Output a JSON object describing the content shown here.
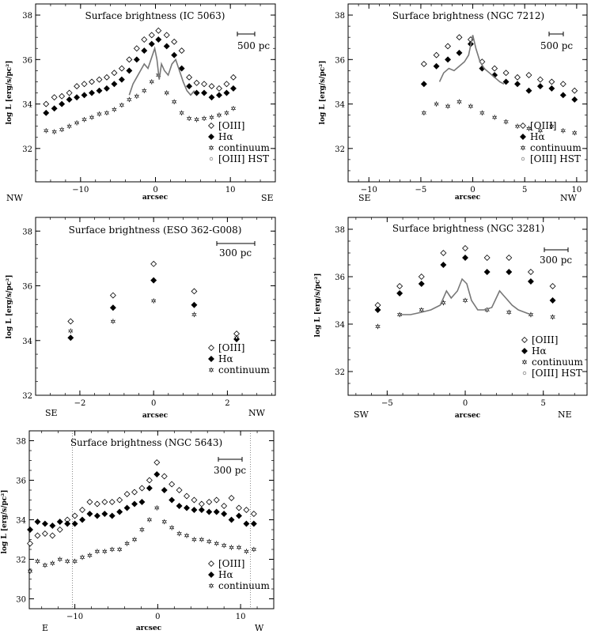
{
  "chart_data": [
    {
      "type": "scatter",
      "title": "Surface brightness (IC 5063)",
      "xlabel": "arcsec",
      "ylabel": "log L [erg/s/pc²]",
      "xlim": [
        -16,
        16
      ],
      "ylim": [
        30.5,
        38.5
      ],
      "xticks": [
        -10,
        0,
        10
      ],
      "yticks": [
        32,
        34,
        36,
        38
      ],
      "left_label": "NW",
      "right_label": "SE",
      "scale_bar": "500 pc",
      "legend": [
        "[OIII]",
        "Hα",
        "continuum",
        "[OIII]  HST"
      ],
      "series": [
        {
          "name": "[OIII]",
          "marker": "diamond-open",
          "x": [
            -14.6,
            -13.5,
            -12.5,
            -11.5,
            -10.5,
            -9.5,
            -8.5,
            -7.5,
            -6.5,
            -5.5,
            -4.5,
            -3.5,
            -2.5,
            -1.5,
            -0.5,
            0.4,
            1.5,
            2.5,
            3.5,
            4.5,
            5.5,
            6.5,
            7.5,
            8.5,
            9.5,
            10.4
          ],
          "y": [
            34.0,
            34.3,
            34.35,
            34.5,
            34.8,
            34.9,
            35.0,
            35.1,
            35.2,
            35.4,
            35.6,
            36.0,
            36.5,
            36.9,
            37.1,
            37.3,
            37.1,
            36.8,
            36.4,
            35.2,
            34.95,
            34.9,
            34.8,
            34.7,
            34.9,
            35.2
          ]
        },
        {
          "name": "Hα",
          "marker": "diamond-filled",
          "x": [
            -14.6,
            -13.5,
            -12.5,
            -11.5,
            -10.5,
            -9.5,
            -8.5,
            -7.5,
            -6.5,
            -5.5,
            -4.5,
            -3.5,
            -2.5,
            -1.5,
            -0.5,
            0.4,
            1.5,
            2.5,
            3.5,
            4.5,
            5.5,
            6.5,
            7.5,
            8.5,
            9.5,
            10.4
          ],
          "y": [
            33.6,
            33.8,
            34.0,
            34.2,
            34.3,
            34.4,
            34.5,
            34.6,
            34.7,
            34.9,
            35.1,
            35.5,
            36.0,
            36.4,
            36.7,
            36.9,
            36.6,
            36.2,
            35.6,
            34.8,
            34.5,
            34.5,
            34.3,
            34.4,
            34.5,
            34.7
          ]
        },
        {
          "name": "continuum",
          "marker": "star",
          "x": [
            -14.6,
            -13.5,
            -12.5,
            -11.5,
            -10.5,
            -9.5,
            -8.5,
            -7.5,
            -6.5,
            -5.5,
            -4.5,
            -3.5,
            -2.5,
            -1.5,
            -0.5,
            0.4,
            1.5,
            2.5,
            3.5,
            4.5,
            5.5,
            6.5,
            7.5,
            8.5,
            9.5,
            10.4
          ],
          "y": [
            32.8,
            32.75,
            32.85,
            33.0,
            33.15,
            33.3,
            33.4,
            33.55,
            33.6,
            33.75,
            33.95,
            34.2,
            34.35,
            34.6,
            35.0,
            35.3,
            34.5,
            34.1,
            33.6,
            33.35,
            33.3,
            33.35,
            33.4,
            33.5,
            33.6,
            33.8
          ]
        },
        {
          "name": "[OIII]  HST",
          "marker": "curve",
          "x": [
            -3.5,
            -3.0,
            -2.5,
            -2.0,
            -1.5,
            -1.0,
            -0.5,
            -0.1,
            0.2,
            0.5,
            0.8,
            1.2,
            1.7,
            2.2,
            2.7,
            3.2,
            3.7,
            4.2,
            4.7,
            5.2
          ],
          "y": [
            34.4,
            34.9,
            35.2,
            35.5,
            35.8,
            35.6,
            36.1,
            36.5,
            36.0,
            35.1,
            35.8,
            35.5,
            35.3,
            35.8,
            36.0,
            35.5,
            35.0,
            34.6,
            34.4,
            34.6
          ]
        }
      ]
    },
    {
      "type": "scatter",
      "title": "Surface brightness (NGC 7212)",
      "xlabel": "arcsec",
      "ylabel": "log L [erg/s/pc²]",
      "xlim": [
        -12,
        11
      ],
      "ylim": [
        30.5,
        38.5
      ],
      "xticks": [
        -10,
        -5,
        0,
        5,
        10
      ],
      "yticks": [
        32,
        34,
        36,
        38
      ],
      "left_label": "SE",
      "right_label": "NW",
      "scale_bar": "500 pc",
      "legend": [
        "[OIII]",
        "Hα",
        "continuum",
        "[OIII]  HST"
      ],
      "series": [
        {
          "name": "[OIII]",
          "marker": "diamond-open",
          "x": [
            -4.7,
            -3.5,
            -2.4,
            -1.3,
            -0.2,
            0.9,
            2.1,
            3.2,
            4.3,
            5.4,
            6.5,
            7.6,
            8.7,
            9.8
          ],
          "y": [
            35.8,
            36.2,
            36.6,
            37.0,
            36.9,
            35.9,
            35.6,
            35.4,
            35.2,
            35.3,
            35.1,
            35.0,
            34.9,
            34.6
          ]
        },
        {
          "name": "Hα",
          "marker": "diamond-filled",
          "x": [
            -4.7,
            -3.5,
            -2.4,
            -1.3,
            -0.2,
            0.9,
            2.1,
            3.2,
            4.3,
            5.4,
            6.5,
            7.6,
            8.7,
            9.8
          ],
          "y": [
            34.9,
            35.7,
            36.0,
            36.3,
            36.7,
            35.6,
            35.3,
            35.0,
            34.9,
            34.6,
            34.8,
            34.7,
            34.4,
            34.2
          ]
        },
        {
          "name": "continuum",
          "marker": "star",
          "x": [
            -4.7,
            -3.5,
            -2.4,
            -1.3,
            -0.2,
            0.9,
            2.1,
            3.2,
            4.3,
            5.4,
            6.5,
            7.6,
            8.7,
            9.8
          ],
          "y": [
            33.6,
            34.0,
            33.9,
            34.1,
            33.9,
            33.6,
            33.4,
            33.2,
            33.0,
            32.9,
            32.8,
            33.0,
            32.8,
            32.7
          ]
        },
        {
          "name": "[OIII]  HST",
          "marker": "curve",
          "x": [
            -3.2,
            -2.8,
            -2.3,
            -1.8,
            -1.3,
            -0.8,
            -0.4,
            0.0,
            0.3,
            0.7,
            1.1,
            1.6,
            2.1,
            2.6,
            3.0
          ],
          "y": [
            35.0,
            35.4,
            35.6,
            35.5,
            35.7,
            35.9,
            36.2,
            37.1,
            36.5,
            35.9,
            35.6,
            35.4,
            35.2,
            35.0,
            34.9
          ]
        }
      ]
    },
    {
      "type": "scatter",
      "title": "Surface brightness (ESO 362-G008)",
      "xlabel": "arcsec",
      "ylabel": "log L [erg/s/pc²]",
      "xlim": [
        -3.2,
        3.3
      ],
      "ylim": [
        32,
        38.5
      ],
      "xticks": [
        -2,
        0,
        2
      ],
      "yticks": [
        32,
        34,
        36,
        38
      ],
      "left_label": "SE",
      "right_label": "NW",
      "scale_bar": "300 pc",
      "legend": [
        "[OIII]",
        "Hα",
        "continuum"
      ],
      "series": [
        {
          "name": "[OIII]",
          "marker": "diamond-open",
          "x": [
            -2.25,
            -1.1,
            0.0,
            1.1,
            2.25
          ],
          "y": [
            34.7,
            35.65,
            36.8,
            35.8,
            34.25
          ]
        },
        {
          "name": "Hα",
          "marker": "diamond-filled",
          "x": [
            -2.25,
            -1.1,
            0.0,
            1.1,
            2.25
          ],
          "y": [
            34.1,
            35.2,
            36.2,
            35.3,
            34.05
          ]
        },
        {
          "name": "continuum",
          "marker": "star",
          "x": [
            -2.25,
            -1.1,
            0.0,
            1.1,
            2.25
          ],
          "y": [
            34.35,
            34.7,
            35.45,
            34.95,
            34.1
          ]
        }
      ]
    },
    {
      "type": "scatter",
      "title": "Surface brightness (NGC 3281)",
      "xlabel": "arcsec",
      "ylabel": "log L [erg/s/pc²]",
      "xlim": [
        -7.5,
        7.8
      ],
      "ylim": [
        31,
        38.5
      ],
      "xticks": [
        -5,
        0,
        5
      ],
      "yticks": [
        32,
        34,
        36,
        38
      ],
      "left_label": "SW",
      "right_label": "NE",
      "scale_bar": "300 pc",
      "legend": [
        "[OIII]",
        "Hα",
        "continuum",
        "[OIII]  HST"
      ],
      "series": [
        {
          "name": "[OIII]",
          "marker": "diamond-open",
          "x": [
            -5.6,
            -4.2,
            -2.8,
            -1.4,
            0.0,
            1.4,
            2.8,
            4.2,
            5.6
          ],
          "y": [
            34.8,
            35.6,
            36.0,
            37.0,
            37.2,
            36.8,
            36.8,
            36.2,
            35.6
          ]
        },
        {
          "name": "Hα",
          "marker": "diamond-filled",
          "x": [
            -5.6,
            -4.2,
            -2.8,
            -1.4,
            0.0,
            1.4,
            2.8,
            4.2,
            5.6
          ],
          "y": [
            34.6,
            35.3,
            35.7,
            36.5,
            36.8,
            36.2,
            36.2,
            35.8,
            35.0
          ]
        },
        {
          "name": "continuum",
          "marker": "star",
          "x": [
            -5.6,
            -4.2,
            -2.8,
            -1.4,
            0.0,
            1.4,
            2.8,
            4.2,
            5.6
          ],
          "y": [
            33.9,
            34.4,
            34.6,
            34.9,
            35.0,
            34.6,
            34.5,
            34.4,
            34.3
          ]
        },
        {
          "name": "[OIII]  HST",
          "marker": "curve",
          "x": [
            -4.2,
            -3.5,
            -2.8,
            -2.2,
            -1.6,
            -1.2,
            -0.9,
            -0.5,
            -0.2,
            0.1,
            0.4,
            0.8,
            1.2,
            1.7,
            2.2,
            2.6,
            3.0,
            3.4,
            3.8,
            4.2
          ],
          "y": [
            34.4,
            34.4,
            34.5,
            34.6,
            34.8,
            35.4,
            35.1,
            35.4,
            35.9,
            35.7,
            35.0,
            34.6,
            34.6,
            34.7,
            35.4,
            35.1,
            34.8,
            34.6,
            34.5,
            34.4
          ]
        }
      ]
    },
    {
      "type": "scatter",
      "title": "Surface brightness (NGC 5643)",
      "xlabel": "arcsec",
      "ylabel": "log L [erg/s/pc²]",
      "xlim": [
        -15.5,
        14
      ],
      "ylim": [
        29.5,
        38.5
      ],
      "xticks": [
        -10,
        0,
        10
      ],
      "yticks": [
        30,
        32,
        34,
        36,
        38
      ],
      "left_label": "E",
      "right_label": "W",
      "scale_bar": "300 pc",
      "vlines": [
        -10.3,
        11.2
      ],
      "legend": [
        "[OIII]",
        "Hα",
        "continuum"
      ],
      "series": [
        {
          "name": "[OIII]",
          "marker": "diamond-open",
          "x": [
            -15.4,
            -14.5,
            -13.6,
            -12.7,
            -11.8,
            -10.9,
            -10.0,
            -9.1,
            -8.2,
            -7.3,
            -6.4,
            -5.5,
            -4.6,
            -3.7,
            -2.8,
            -1.9,
            -1.0,
            -0.1,
            0.8,
            1.7,
            2.6,
            3.5,
            4.4,
            5.3,
            6.2,
            7.1,
            8.0,
            8.9,
            9.8,
            10.7,
            11.6
          ],
          "y": [
            32.8,
            33.2,
            33.3,
            33.2,
            33.5,
            34.0,
            34.2,
            34.5,
            34.9,
            34.8,
            34.9,
            34.9,
            35.0,
            35.3,
            35.4,
            35.6,
            36.0,
            36.9,
            36.2,
            35.8,
            35.5,
            35.2,
            35.0,
            34.8,
            34.9,
            35.0,
            34.7,
            35.1,
            34.6,
            34.5,
            34.3
          ]
        },
        {
          "name": "Hα",
          "marker": "diamond-filled",
          "x": [
            -15.4,
            -14.5,
            -13.6,
            -12.7,
            -11.8,
            -10.9,
            -10.0,
            -9.1,
            -8.2,
            -7.3,
            -6.4,
            -5.5,
            -4.6,
            -3.7,
            -2.8,
            -1.9,
            -1.0,
            -0.1,
            0.8,
            1.7,
            2.6,
            3.5,
            4.4,
            5.3,
            6.2,
            7.1,
            8.0,
            8.9,
            9.8,
            10.7,
            11.6
          ],
          "y": [
            33.5,
            33.9,
            33.8,
            33.7,
            33.9,
            33.8,
            33.8,
            34.0,
            34.3,
            34.2,
            34.3,
            34.2,
            34.4,
            34.6,
            34.8,
            34.9,
            35.6,
            36.3,
            35.5,
            35.0,
            34.7,
            34.6,
            34.5,
            34.5,
            34.4,
            34.4,
            34.3,
            34.0,
            34.2,
            33.8,
            33.8
          ]
        },
        {
          "name": "continuum",
          "marker": "star",
          "x": [
            -15.4,
            -14.5,
            -13.6,
            -12.7,
            -11.8,
            -10.9,
            -10.0,
            -9.1,
            -8.2,
            -7.3,
            -6.4,
            -5.5,
            -4.6,
            -3.7,
            -2.8,
            -1.9,
            -1.0,
            -0.1,
            0.8,
            1.7,
            2.6,
            3.5,
            4.4,
            5.3,
            6.2,
            7.1,
            8.0,
            8.9,
            9.8,
            10.7,
            11.6
          ],
          "y": [
            31.4,
            31.9,
            31.7,
            31.8,
            32.0,
            31.9,
            31.9,
            32.1,
            32.2,
            32.4,
            32.4,
            32.5,
            32.5,
            32.8,
            33.0,
            33.5,
            34.0,
            34.6,
            33.9,
            33.6,
            33.3,
            33.2,
            33.0,
            33.0,
            32.9,
            32.8,
            32.7,
            32.6,
            32.6,
            32.4,
            32.5
          ]
        }
      ]
    }
  ]
}
